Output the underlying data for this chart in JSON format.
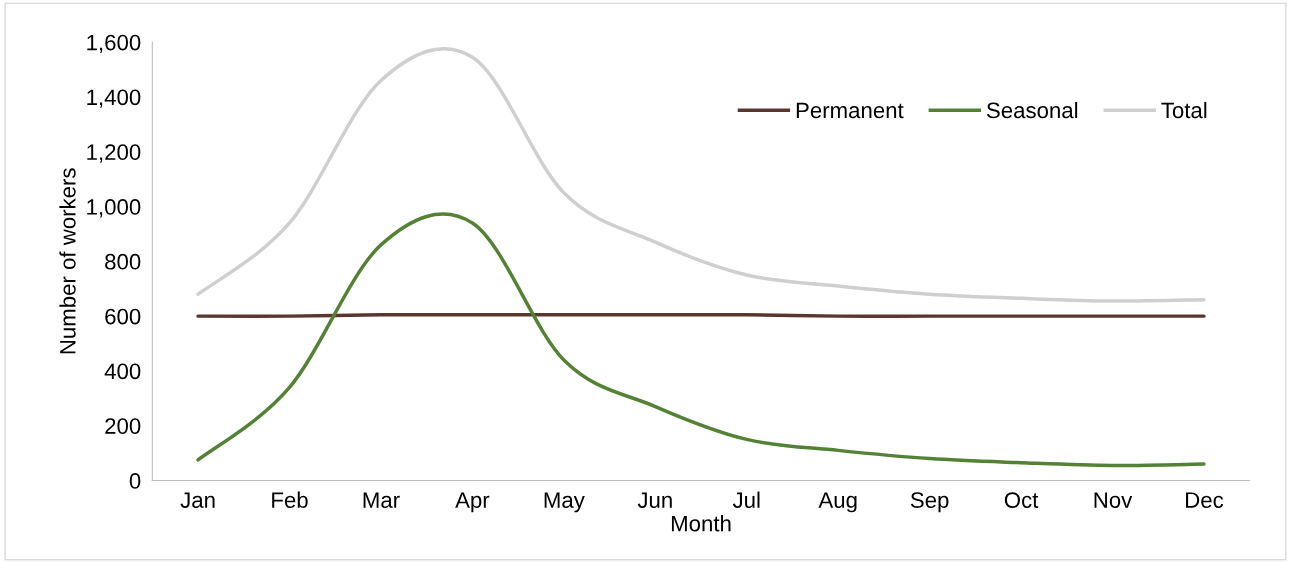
{
  "chart_data": {
    "type": "line",
    "xlabel": "Month",
    "ylabel": "Number of workers",
    "categories": [
      "Jan",
      "Feb",
      "Mar",
      "Apr",
      "May",
      "Jun",
      "Jul",
      "Aug",
      "Sep",
      "Oct",
      "Nov",
      "Dec"
    ],
    "series": [
      {
        "name": "Permanent",
        "color": "#59372f",
        "values": [
          600,
          600,
          605,
          605,
          605,
          605,
          605,
          600,
          600,
          600,
          600,
          600
        ]
      },
      {
        "name": "Seasonal",
        "color": "#548235",
        "values": [
          75,
          340,
          860,
          940,
          440,
          270,
          150,
          110,
          80,
          65,
          55,
          60
        ]
      },
      {
        "name": "Total",
        "color": "#d0cece",
        "values": [
          680,
          940,
          1460,
          1545,
          1050,
          870,
          750,
          710,
          680,
          665,
          655,
          660
        ]
      }
    ],
    "ylim": [
      0,
      1600
    ],
    "yticks": [
      0,
      200,
      400,
      600,
      800,
      {
        "value": 1000,
        "label": "1,000"
      },
      {
        "value": 1200,
        "label": "1,200"
      },
      {
        "value": 1400,
        "label": "1,400"
      },
      {
        "value": 1600,
        "label": "1,600"
      }
    ],
    "grid": false,
    "legend": "top right",
    "marker": "none",
    "line_style": "solid"
  }
}
